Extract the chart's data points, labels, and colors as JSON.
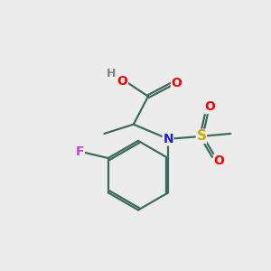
{
  "background_color": "#ececec",
  "bond_color": "#3d6b5e",
  "bond_width": 1.6,
  "atom_colors": {
    "H": "#808080",
    "O": "#ff0000",
    "N": "#2020cc",
    "S": "#ccaa00",
    "F": "#cc44cc",
    "C": "#3d6b5e"
  },
  "figsize": [
    3.0,
    3.0
  ],
  "dpi": 100
}
